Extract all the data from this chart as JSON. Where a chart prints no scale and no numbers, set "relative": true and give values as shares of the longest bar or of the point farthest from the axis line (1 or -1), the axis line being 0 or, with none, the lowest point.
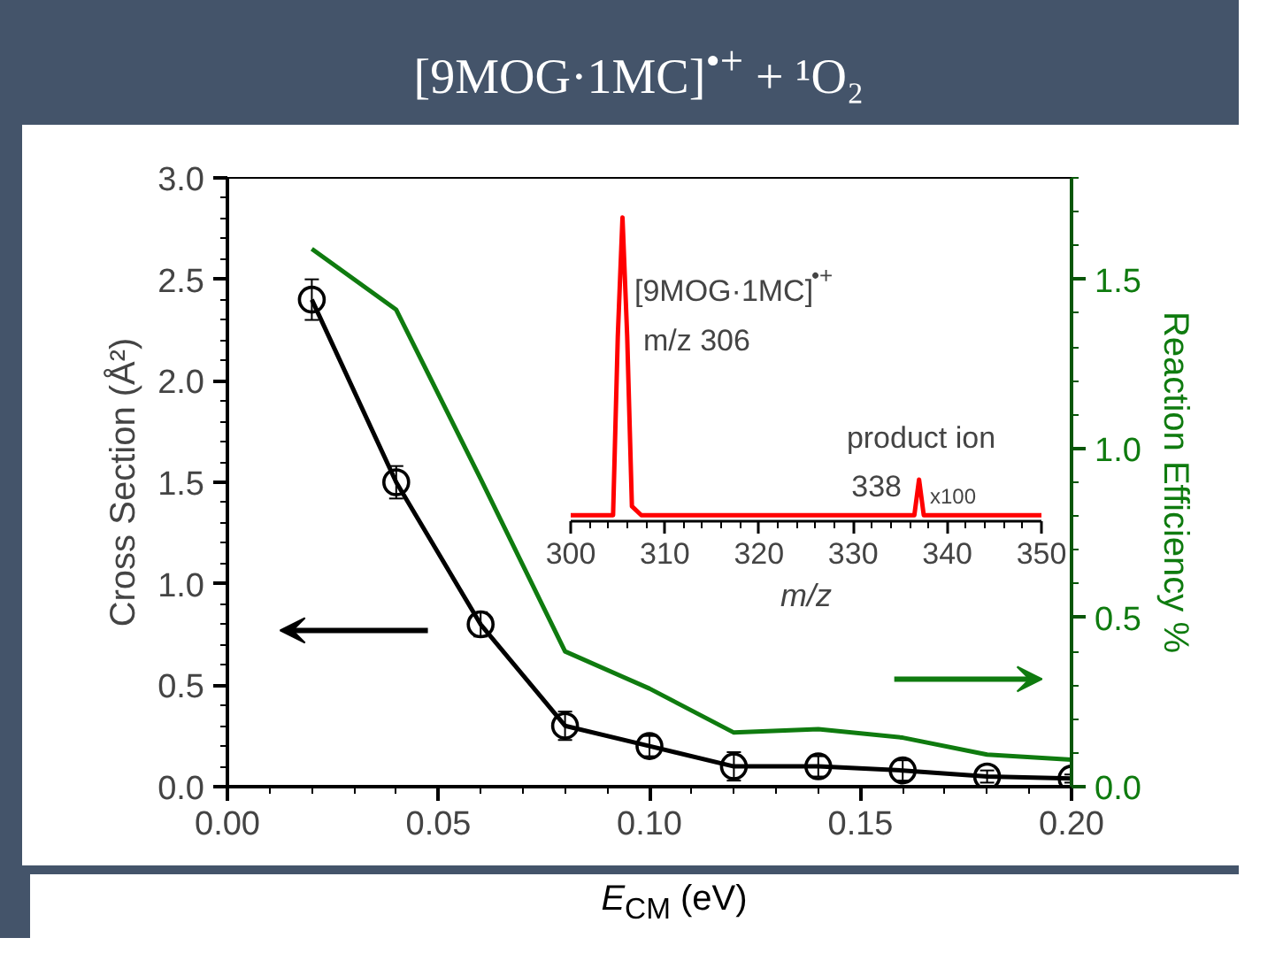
{
  "chart_data": [
    {
      "type": "line",
      "title": "[9MOG·1MC]$^{•+}$ + ¹O₂",
      "xlabel": "E$_{CM}$ (eV)",
      "ylabel": "Cross Section (Å²)",
      "y2label": "Reaction Efficiency %",
      "x": [
        0.02,
        0.04,
        0.06,
        0.08,
        0.1,
        0.12,
        0.14,
        0.16,
        0.18,
        0.2
      ],
      "series": [
        {
          "color": "#000000",
          "marker": "circle",
          "values": [
            2.4,
            1.5,
            0.8,
            0.3,
            0.2,
            0.1,
            0.1,
            0.08,
            0.05,
            0.04
          ],
          "errors": [
            0.1,
            0.08,
            0.06,
            0.07,
            0.05,
            0.07,
            0.05,
            0.05,
            0.03,
            0.02
          ]
        },
        {
          "color": "#0f7b0f",
          "marker": "none",
          "axis": "y2",
          "values": [
            1.59,
            1.41,
            0.91,
            0.4,
            0.29,
            0.16,
            0.17,
            0.145,
            0.095,
            0.08
          ]
        }
      ],
      "xlim": [
        0.0,
        0.2
      ],
      "xticks": [
        {
          "value": 0.0,
          "label": "0.00"
        },
        0.05,
        {
          "value": 0.1,
          "label": "0.10"
        },
        0.15,
        {
          "value": 0.2,
          "label": "0.20"
        }
      ],
      "ylim": [
        0.0,
        3.0
      ],
      "yticks": [
        {
          "value": 0,
          "label": "0.0"
        },
        0.5,
        {
          "value": 1,
          "label": "1.0"
        },
        1.5,
        {
          "value": 2,
          "label": "2.0"
        },
        2.5,
        {
          "value": 3,
          "label": "3.0"
        }
      ],
      "y2lim": [
        0.0,
        1.8
      ],
      "y2ticks": [
        {
          "value": 0,
          "label": "0.0"
        },
        0.5,
        {
          "value": 1,
          "label": "1.0"
        },
        1.5
      ],
      "grid": false,
      "line_style": "solid"
    },
    {
      "type": "line",
      "relative": true,
      "xlabel": "m/z",
      "x": [
        300,
        304.5,
        305,
        305.5,
        306,
        306.5,
        307.5,
        336.5,
        337,
        337.5,
        350
      ],
      "series": [
        {
          "color": "#ff0000",
          "values": [
            0,
            0,
            0.6,
            1.0,
            0.6,
            0.03,
            0,
            0,
            0.12,
            0,
            0
          ]
        }
      ],
      "xlim": [
        300,
        350
      ],
      "xticks": [
        300,
        310,
        320,
        330,
        340,
        350
      ],
      "annotations": [
        "[9MOG·1MC]$^{•+}$",
        "m/z 306",
        "product ion",
        "338",
        "x100"
      ],
      "grid": false
    }
  ]
}
